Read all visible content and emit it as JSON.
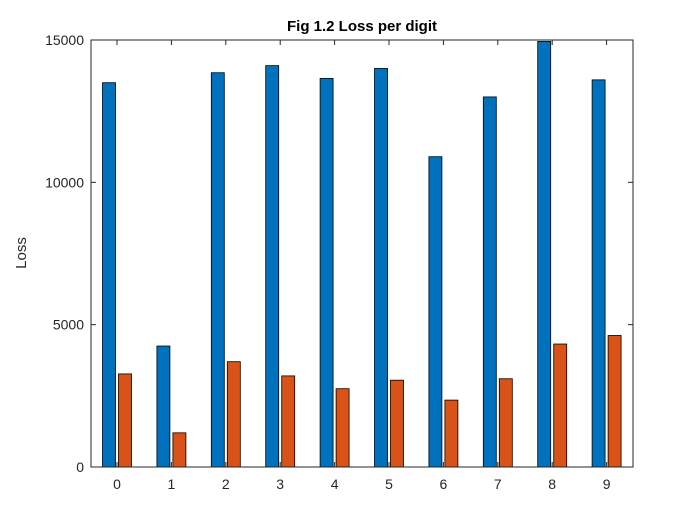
{
  "chart_data": {
    "type": "bar",
    "title": "Fig 1.2 Loss per digit",
    "xlabel": "",
    "ylabel": "Loss",
    "categories": [
      "0",
      "1",
      "2",
      "3",
      "4",
      "5",
      "6",
      "7",
      "8",
      "9"
    ],
    "ylim": [
      0,
      15000
    ],
    "yticks": [
      0,
      5000,
      10000,
      15000
    ],
    "ytick_labels": [
      "0",
      "5000",
      "10000",
      "15000"
    ],
    "grid": false,
    "legend": "none",
    "series": [
      {
        "values": [
          13500,
          4250,
          13850,
          14100,
          13650,
          14000,
          10900,
          13000,
          14950,
          13600
        ],
        "color": "#0072BD"
      },
      {
        "values": [
          3270,
          1200,
          3700,
          3200,
          2750,
          3050,
          2350,
          3100,
          4320,
          4620
        ],
        "color": "#D95319"
      }
    ]
  }
}
